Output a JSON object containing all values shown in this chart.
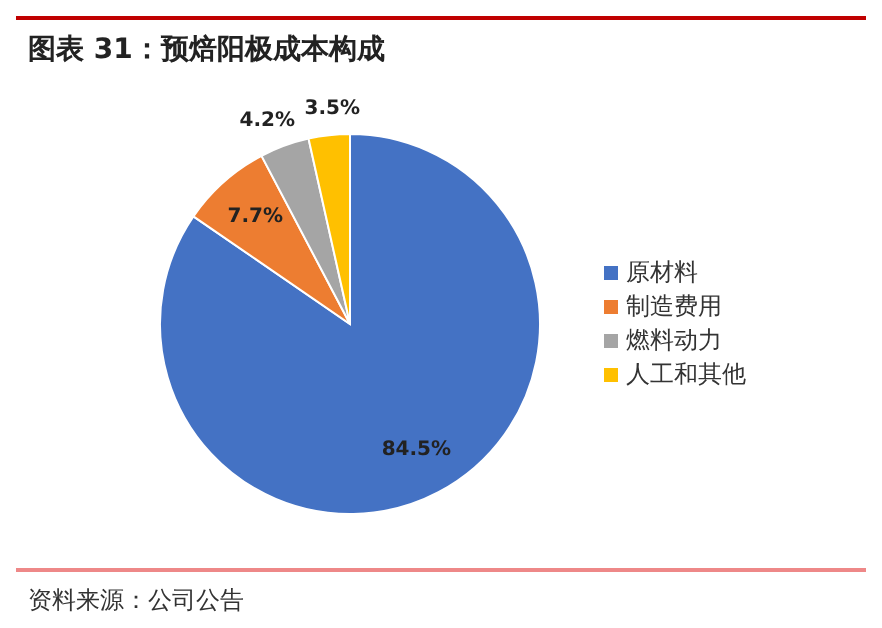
{
  "chart_data": {
    "type": "pie",
    "title": "图表 31：预焙阳极成本构成",
    "categories": [
      "原材料",
      "制造费用",
      "燃料动力",
      "人工和其他"
    ],
    "values": [
      84.5,
      7.7,
      4.2,
      3.5
    ],
    "colors": [
      "#4472c4",
      "#ed7d31",
      "#a5a5a5",
      "#ffc000"
    ],
    "value_labels": [
      "84.5%",
      "7.7%",
      "4.2%",
      "3.5%"
    ],
    "legend": "right",
    "annotations": [
      "资料来源：公司公告"
    ]
  }
}
